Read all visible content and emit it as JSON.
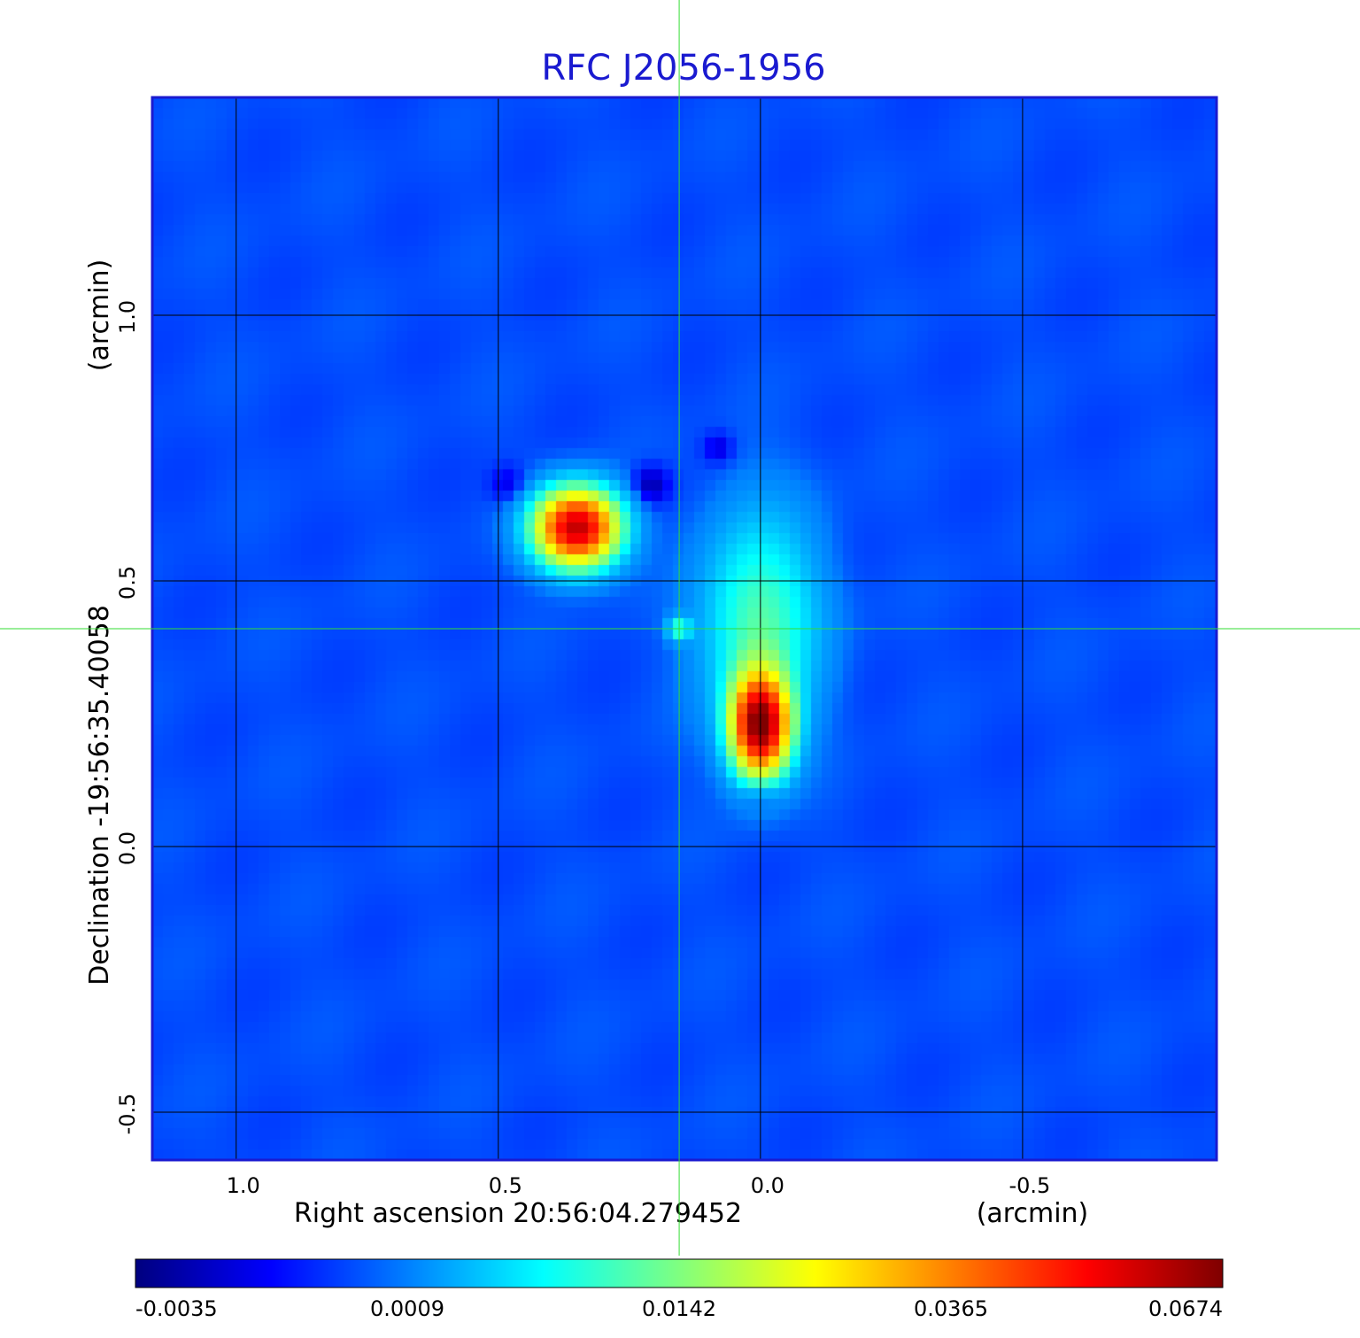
{
  "chart_data": {
    "type": "heatmap",
    "title": "RFC J2056-1956",
    "xlabel": "Right ascension  20:56:04.279452",
    "xunit": "(arcmin)",
    "ylabel": "Declination  -19:56:35.40058",
    "yunit": "(arcmin)",
    "xlim": [
      1.16,
      -0.87
    ],
    "ylim": [
      -0.59,
      1.41
    ],
    "x_ticks": [
      1.0,
      0.5,
      0.0,
      -0.5
    ],
    "x_tick_labels": [
      "1.0",
      "0.5",
      "0.0",
      "-0.5"
    ],
    "y_ticks": [
      1.0,
      0.5,
      0.0,
      -0.5
    ],
    "y_tick_labels": [
      "1.0",
      "0.5",
      "0.0",
      "-0.5"
    ],
    "grid": true,
    "crosshair": {
      "x": 0.155,
      "y": 0.41,
      "color": "#33dd33"
    },
    "colormap": "jet",
    "colorbar": {
      "tick_labels": [
        "-0.0035",
        "0.0009",
        "0.0142",
        "0.0365",
        "0.0674"
      ],
      "min": -0.0035,
      "max": 0.0674
    },
    "background_level": 0.0,
    "sources": [
      {
        "x": 0.35,
        "y": 0.6,
        "peak": 0.06,
        "sigma_x": 0.05,
        "sigma_y": 0.045
      },
      {
        "x": 0.0,
        "y": 0.23,
        "peak": 0.0674,
        "sigma_x": 0.035,
        "sigma_y": 0.06
      },
      {
        "x": 0.0,
        "y": 0.42,
        "peak": 0.012,
        "sigma_x": 0.07,
        "sigma_y": 0.13
      },
      {
        "x": 0.155,
        "y": 0.41,
        "peak": 0.01,
        "sigma_x": 0.015,
        "sigma_y": 0.015
      },
      {
        "x": 0.0,
        "y": 0.1,
        "peak": -0.0035,
        "sigma_x": 0.025,
        "sigma_y": 0.02
      },
      {
        "x": 0.21,
        "y": 0.68,
        "peak": -0.003,
        "sigma_x": 0.025,
        "sigma_y": 0.025
      },
      {
        "x": 0.08,
        "y": 0.75,
        "peak": -0.002,
        "sigma_x": 0.02,
        "sigma_y": 0.02
      },
      {
        "x": 0.48,
        "y": 0.68,
        "peak": -0.002,
        "sigma_x": 0.025,
        "sigma_y": 0.025
      }
    ]
  }
}
